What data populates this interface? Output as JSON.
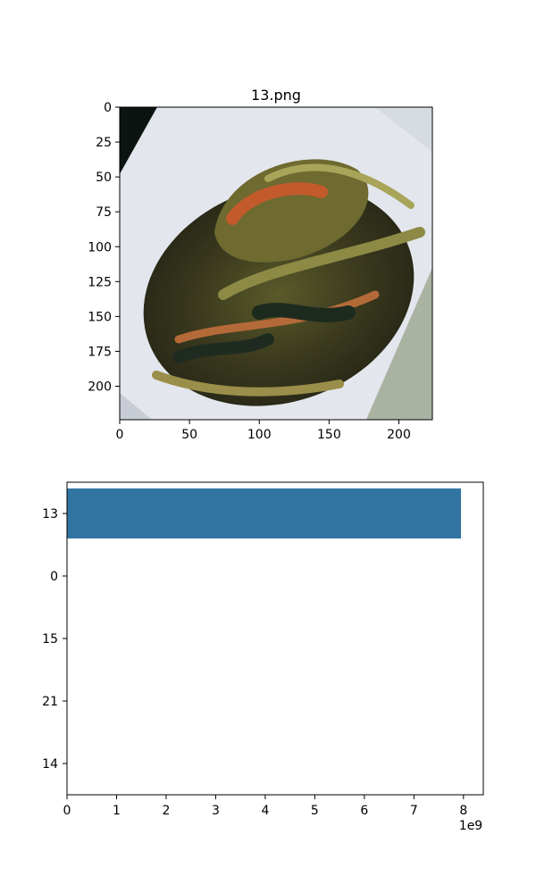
{
  "chart_data": [
    {
      "type": "image",
      "title": "13.png",
      "xlim": [
        0,
        224
      ],
      "ylim": [
        224,
        0
      ],
      "x_ticks": [
        0,
        50,
        100,
        150,
        200
      ],
      "y_ticks": [
        0,
        25,
        50,
        75,
        100,
        125,
        150,
        175,
        200
      ]
    },
    {
      "type": "bar",
      "orientation": "horizontal",
      "categories": [
        "13",
        "0",
        "15",
        "21",
        "14"
      ],
      "values": [
        7950000000,
        0,
        0,
        0,
        0
      ],
      "xlim": [
        0,
        8400000000
      ],
      "x_ticks": [
        0,
        1,
        2,
        3,
        4,
        5,
        6,
        7,
        8
      ],
      "x_offset_label": "1e9",
      "bar_color": "#3274a1"
    }
  ]
}
